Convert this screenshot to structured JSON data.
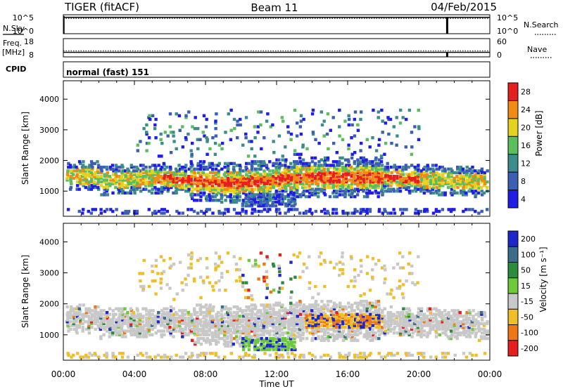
{
  "header": {
    "radar": "TIGER (fitACF)",
    "beam": "Beam 11",
    "date": "04/Feb/2015"
  },
  "strip_labels": {
    "nsky": "N.Sky",
    "nsearch": "N.Search",
    "freq_line1": "Freq.",
    "freq_line2": "[MHz]",
    "nave": "Nave",
    "cpid": "CPID",
    "cpid_value": "normal (fast) 151"
  },
  "chart_data": [
    {
      "type": "line",
      "panel": "noise",
      "left_ticks": [
        "10^5",
        "10^0"
      ],
      "right_ticks": [
        "10^5",
        "10^0"
      ],
      "series": [
        {
          "name": "N.Sky",
          "style": "solid",
          "level": 0.9
        },
        {
          "name": "N.Search",
          "style": "dotted",
          "level": 0.9
        }
      ],
      "spike_hour": 21.6
    },
    {
      "type": "line",
      "panel": "frequency",
      "left_ticks": [
        "18",
        "8"
      ],
      "right_ticks": [
        "60",
        "0"
      ],
      "series": [
        {
          "name": "Freq.",
          "style": "solid",
          "value_mhz": 10.5
        },
        {
          "name": "Nave",
          "style": "dotted",
          "value": 20
        }
      ],
      "spike_hour": 21.6
    },
    {
      "type": "heatmap",
      "panel": "power",
      "ylabel": "Slant Range [km]",
      "yticks": [
        1000,
        2000,
        3000,
        4000
      ],
      "ylim": [
        180,
        4600
      ],
      "xlim": [
        0,
        24
      ],
      "colorbar": {
        "label": "Power [dB]",
        "ticks": [
          "4",
          "8",
          "12",
          "16",
          "20",
          "24",
          "28"
        ],
        "colors": [
          "#1e1ee6",
          "#3a5fb4",
          "#3c8c8c",
          "#5abe5a",
          "#e6d21e",
          "#f08c14",
          "#e61e1e"
        ]
      }
    },
    {
      "type": "heatmap",
      "panel": "velocity",
      "ylabel": "Slant Range [km]",
      "yticks": [
        1000,
        2000,
        3000,
        4000
      ],
      "ylim": [
        180,
        4600
      ],
      "xlim": [
        0,
        24
      ],
      "xticks": [
        "00:00",
        "04:00",
        "08:00",
        "12:00",
        "16:00",
        "20:00",
        "00:00"
      ],
      "xlabel": "Time UT",
      "colorbar": {
        "label": "Velocity [m s⁻¹]",
        "ticks": [
          "200",
          "100",
          "50",
          "15",
          "-15",
          "-50",
          "-100",
          "-200"
        ],
        "colors": [
          "#1e28c8",
          "#3c6e8c",
          "#2d8c3c",
          "#6ec83c",
          "#c8c8c8",
          "#f0be28",
          "#f07814",
          "#e61e1e"
        ]
      }
    }
  ]
}
